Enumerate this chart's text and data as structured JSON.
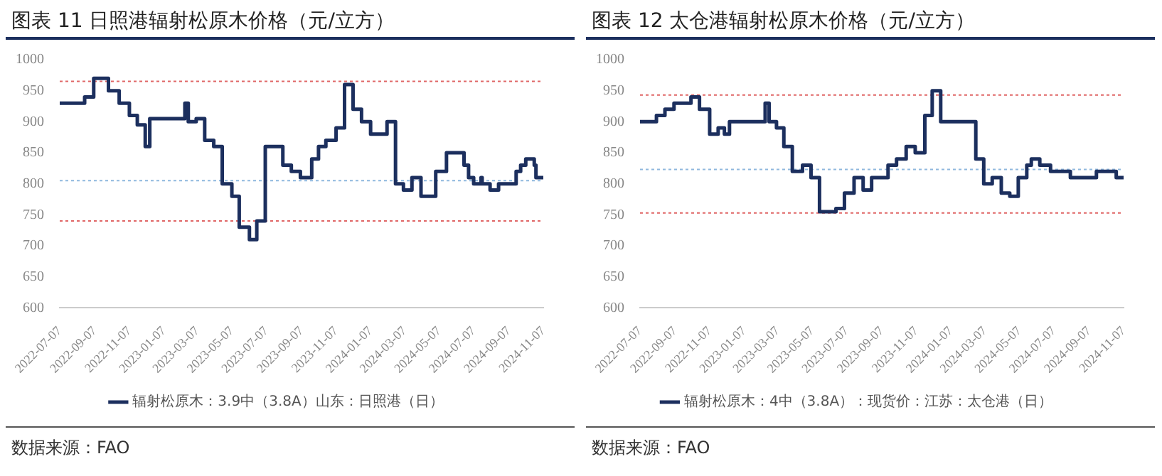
{
  "chart_data": [
    {
      "type": "step",
      "title": "图表 11 日照港辐射松原木价格（元/立方）",
      "legend": "bottom",
      "grid": false,
      "xlim": [
        "2022-07-07",
        "2024-11-07"
      ],
      "xticks": [
        "2022-07-07",
        "2022-09-07",
        "2022-11-07",
        "2023-01-07",
        "2023-03-07",
        "2023-05-07",
        "2023-07-07",
        "2023-09-07",
        "2023-11-07",
        "2024-01-07",
        "2024-03-07",
        "2024-05-07",
        "2024-07-07",
        "2024-09-07",
        "2024-11-07"
      ],
      "ylim": [
        600,
        1000
      ],
      "yticks": [
        600,
        650,
        700,
        750,
        800,
        850,
        900,
        950,
        1000
      ],
      "series": [
        {
          "name": "辐射松原木：3.9中（3.8A）山东：日照港（日）",
          "color": "#1c2f5e",
          "x": [
            "2022-07-07",
            "2022-08-20",
            "2022-09-05",
            "2022-10-01",
            "2022-10-20",
            "2022-11-07",
            "2022-11-21",
            "2022-12-05",
            "2022-12-13",
            "2023-02-13",
            "2023-02-19",
            "2023-03-05",
            "2023-03-20",
            "2023-04-05",
            "2023-04-20",
            "2023-05-07",
            "2023-05-20",
            "2023-06-07",
            "2023-06-20",
            "2023-07-05",
            "2023-08-05",
            "2023-08-20",
            "2023-09-05",
            "2023-09-25",
            "2023-10-07",
            "2023-10-20",
            "2023-11-07",
            "2023-11-22",
            "2023-12-07",
            "2023-12-22",
            "2024-01-07",
            "2024-02-05",
            "2024-02-20",
            "2024-03-05",
            "2024-03-20",
            "2024-04-05",
            "2024-05-01",
            "2024-05-20",
            "2024-06-20",
            "2024-06-28",
            "2024-07-07",
            "2024-07-20",
            "2024-07-22",
            "2024-08-05",
            "2024-08-20",
            "2024-09-20",
            "2024-09-28",
            "2024-10-07",
            "2024-10-22",
            "2024-10-25",
            "2024-11-07"
          ],
          "values": [
            930,
            940,
            970,
            950,
            930,
            910,
            895,
            860,
            905,
            930,
            900,
            905,
            870,
            860,
            800,
            780,
            730,
            710,
            740,
            860,
            830,
            820,
            810,
            840,
            860,
            870,
            890,
            960,
            920,
            900,
            880,
            900,
            800,
            790,
            810,
            780,
            820,
            850,
            830,
            810,
            800,
            810,
            800,
            790,
            800,
            820,
            830,
            840,
            830,
            810,
            810
          ]
        }
      ],
      "ref_lines": [
        {
          "axis": "y",
          "value": 965,
          "color": "#e06666",
          "line_style": "dotted"
        },
        {
          "axis": "y",
          "value": 805,
          "color": "#8fb8de",
          "line_style": "dotted"
        },
        {
          "axis": "y",
          "value": 740,
          "color": "#e06666",
          "line_style": "dotted"
        }
      ],
      "annotations": [
        "数据来源：FAO"
      ]
    },
    {
      "type": "step",
      "title": "图表 12 太仓港辐射松原木价格（元/立方）",
      "legend": "bottom",
      "grid": false,
      "xlim": [
        "2022-07-07",
        "2024-11-07"
      ],
      "xticks": [
        "2022-07-07",
        "2022-09-07",
        "2022-11-07",
        "2023-01-07",
        "2023-03-07",
        "2023-05-07",
        "2023-07-07",
        "2023-09-07",
        "2023-11-07",
        "2024-01-07",
        "2024-03-07",
        "2024-05-07",
        "2024-07-07",
        "2024-09-07",
        "2024-11-07"
      ],
      "ylim": [
        600,
        1000
      ],
      "yticks": [
        600,
        650,
        700,
        750,
        800,
        850,
        900,
        950,
        1000
      ],
      "series": [
        {
          "name": "辐射松原木：4中（3.8A）：现货价：江苏：太仓港（日）",
          "color": "#1c2f5e",
          "x": [
            "2022-07-07",
            "2022-08-05",
            "2022-08-20",
            "2022-09-05",
            "2022-10-05",
            "2022-10-20",
            "2022-11-07",
            "2022-11-22",
            "2022-12-03",
            "2022-12-12",
            "2023-02-13",
            "2023-02-20",
            "2023-03-05",
            "2023-03-18",
            "2023-04-02",
            "2023-04-20",
            "2023-05-05",
            "2023-05-20",
            "2023-06-18",
            "2023-07-03",
            "2023-07-20",
            "2023-08-05",
            "2023-08-20",
            "2023-09-18",
            "2023-10-03",
            "2023-10-20",
            "2023-11-05",
            "2023-11-22",
            "2023-12-05",
            "2023-12-20",
            "2024-02-20",
            "2024-03-05",
            "2024-03-20",
            "2024-04-05",
            "2024-04-20",
            "2024-05-05",
            "2024-05-20",
            "2024-05-28",
            "2024-06-12",
            "2024-07-01",
            "2024-08-05",
            "2024-09-20",
            "2024-10-25",
            "2024-11-07"
          ],
          "values": [
            900,
            910,
            920,
            930,
            940,
            920,
            880,
            890,
            880,
            900,
            930,
            900,
            890,
            860,
            820,
            830,
            810,
            755,
            760,
            785,
            810,
            790,
            810,
            830,
            840,
            860,
            850,
            910,
            950,
            900,
            840,
            800,
            810,
            785,
            780,
            810,
            830,
            840,
            830,
            820,
            810,
            820,
            810,
            810
          ]
        }
      ],
      "ref_lines": [
        {
          "axis": "y",
          "value": 943,
          "color": "#e06666",
          "line_style": "dotted"
        },
        {
          "axis": "y",
          "value": 823,
          "color": "#8fb8de",
          "line_style": "dotted"
        },
        {
          "axis": "y",
          "value": 753,
          "color": "#e06666",
          "line_style": "dotted"
        }
      ],
      "annotations": [
        "数据来源：FAO"
      ]
    }
  ]
}
